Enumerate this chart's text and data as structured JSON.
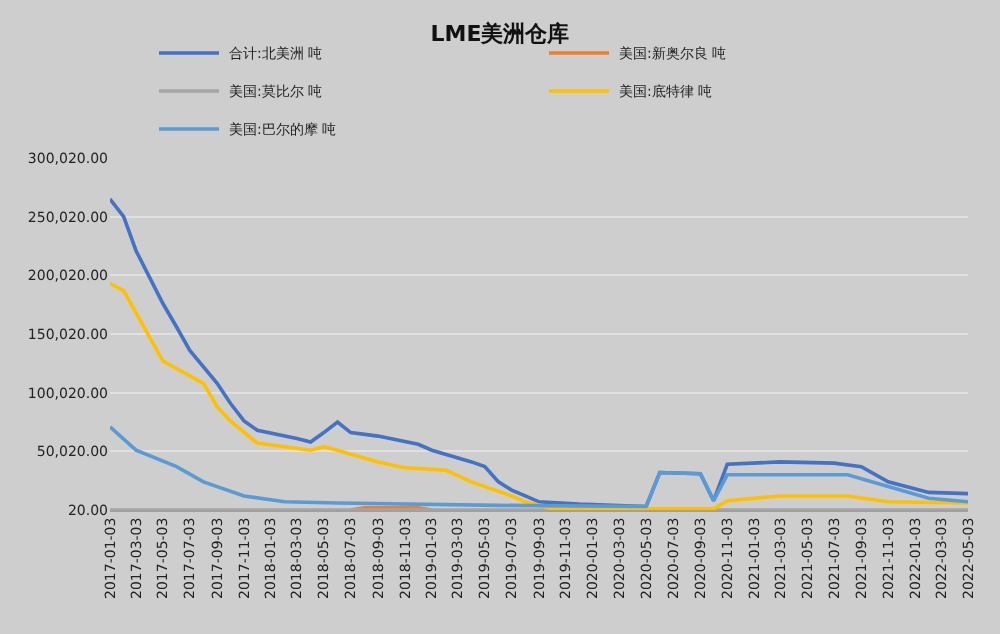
{
  "chart_data": {
    "type": "line",
    "title": "LME美洲仓库",
    "ylim": [
      20,
      300020
    ],
    "yticks": [
      {
        "value": 20,
        "label": "20.00"
      },
      {
        "value": 50020,
        "label": "50,020.00"
      },
      {
        "value": 100020,
        "label": "100,020.00"
      },
      {
        "value": 150020,
        "label": "150,020.00"
      },
      {
        "value": 200020,
        "label": "200,020.00"
      },
      {
        "value": 250020,
        "label": "250,020.00"
      },
      {
        "value": 300020,
        "label": "300,020.00"
      }
    ],
    "xlim": [
      "2017-01-03",
      "2022-05-03"
    ],
    "xticks": [
      "2017-01-03",
      "2017-03-03",
      "2017-05-03",
      "2017-07-03",
      "2017-09-03",
      "2017-11-03",
      "2018-01-03",
      "2018-03-03",
      "2018-05-03",
      "2018-07-03",
      "2018-09-03",
      "2018-11-03",
      "2019-01-03",
      "2019-03-03",
      "2019-05-03",
      "2019-07-03",
      "2019-09-03",
      "2019-11-03",
      "2020-01-03",
      "2020-03-03",
      "2020-05-03",
      "2020-07-03",
      "2020-09-03",
      "2020-11-03",
      "2021-01-03",
      "2021-03-03",
      "2021-05-03",
      "2021-07-03",
      "2021-09-03",
      "2021-11-03",
      "2022-01-03",
      "2022-03-03",
      "2022-05-03"
    ],
    "grid": "y",
    "legend": "top",
    "marker": "none",
    "line_style": "solid",
    "series": [
      {
        "name": "合计:北美洲 吨",
        "color": "#4472c4",
        "x": [
          "2017-01-03",
          "2017-02-03",
          "2017-03-03",
          "2017-05-03",
          "2017-06-03",
          "2017-07-03",
          "2017-09-03",
          "2017-10-03",
          "2017-11-03",
          "2017-12-03",
          "2018-03-03",
          "2018-04-03",
          "2018-05-03",
          "2018-06-03",
          "2018-07-03",
          "2018-09-03",
          "2018-12-03",
          "2019-01-03",
          "2019-04-03",
          "2019-05-03",
          "2019-06-03",
          "2019-07-03",
          "2019-08-03",
          "2019-09-03",
          "2019-12-03",
          "2020-05-03",
          "2020-06-03",
          "2020-09-03",
          "2020-10-03",
          "2020-11-03",
          "2021-03-03",
          "2021-07-03",
          "2021-09-03",
          "2021-11-03",
          "2022-02-03",
          "2022-05-03"
        ],
        "values": [
          265000,
          250000,
          221000,
          176000,
          156000,
          136000,
          108000,
          91000,
          76000,
          68000,
          61000,
          58000,
          66000,
          75000,
          66000,
          63000,
          56000,
          51000,
          41000,
          37000,
          24000,
          17000,
          12000,
          7000,
          5000,
          3000,
          32000,
          31000,
          8000,
          39000,
          41000,
          40000,
          37000,
          24000,
          15000,
          14000
        ]
      },
      {
        "name": "美国:新奥尔良 吨",
        "color": "#ed7d31",
        "x": [
          "2018-07-03",
          "2018-08-03",
          "2018-12-03",
          "2019-01-03"
        ],
        "values": [
          20,
          2000,
          2000,
          20
        ]
      },
      {
        "name": "美国:莫比尔 吨",
        "color": "#a5a5a5",
        "x": [
          "2017-01-03",
          "2022-05-03"
        ],
        "values": [
          20,
          20
        ]
      },
      {
        "name": "美国:底特律 吨",
        "color": "#ffc000",
        "x": [
          "2017-01-03",
          "2017-02-03",
          "2017-05-03",
          "2017-08-03",
          "2017-09-03",
          "2017-10-03",
          "2017-12-03",
          "2018-04-03",
          "2018-05-03",
          "2018-06-03",
          "2018-09-03",
          "2018-11-03",
          "2019-02-03",
          "2019-04-03",
          "2019-07-03",
          "2019-08-03",
          "2019-10-03",
          "2020-10-03",
          "2020-11-03",
          "2021-03-03",
          "2021-08-03",
          "2021-11-03",
          "2022-05-03"
        ],
        "values": [
          193000,
          187000,
          127000,
          108000,
          88000,
          76000,
          57000,
          51000,
          54000,
          51000,
          41000,
          36000,
          34000,
          24000,
          12000,
          7000,
          1000,
          1000,
          8000,
          12000,
          12000,
          7000,
          6000
        ]
      },
      {
        "name": "美国:巴尔的摩 吨",
        "color": "#5b9bd5",
        "x": [
          "2017-01-03",
          "2017-03-03",
          "2017-06-03",
          "2017-08-03",
          "2017-11-03",
          "2018-02-03",
          "2018-06-03",
          "2019-06-03",
          "2020-05-03",
          "2020-06-03",
          "2020-09-03",
          "2020-10-03",
          "2020-11-03",
          "2021-08-03",
          "2021-11-03",
          "2022-02-03",
          "2022-05-03"
        ],
        "values": [
          71000,
          51000,
          37000,
          24000,
          12000,
          7000,
          6000,
          4000,
          3000,
          32000,
          31000,
          8000,
          30000,
          30000,
          20000,
          10000,
          7000
        ]
      }
    ]
  }
}
